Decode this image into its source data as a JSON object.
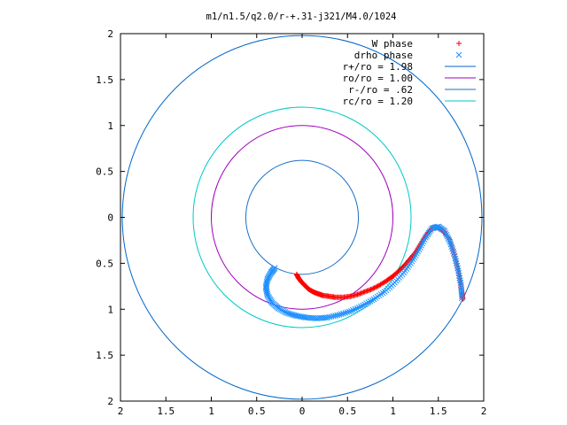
{
  "chart_data": {
    "type": "scatter",
    "title": "m1/n1.5/q2.0/r-+.31-j321/M4.0/1024",
    "xlabel": "",
    "ylabel": "",
    "xlim": [
      -2,
      2
    ],
    "ylim": [
      -2,
      2
    ],
    "x_ticks": [
      {
        "v": -2,
        "label": "2"
      },
      {
        "v": -1.5,
        "label": "1.5"
      },
      {
        "v": -1,
        "label": "1"
      },
      {
        "v": -0.5,
        "label": "0.5"
      },
      {
        "v": 0,
        "label": "0"
      },
      {
        "v": 0.5,
        "label": "0.5"
      },
      {
        "v": 1,
        "label": "1"
      },
      {
        "v": 1.5,
        "label": "1.5"
      },
      {
        "v": 2,
        "label": "2"
      }
    ],
    "y_ticks": [
      {
        "v": 2,
        "label": "2"
      },
      {
        "v": 1.5,
        "label": "1.5"
      },
      {
        "v": 1,
        "label": "1"
      },
      {
        "v": 0.5,
        "label": "0.5"
      },
      {
        "v": 0,
        "label": "0"
      },
      {
        "v": -0.5,
        "label": "0.5"
      },
      {
        "v": -1,
        "label": "1"
      },
      {
        "v": -1.5,
        "label": "1.5"
      },
      {
        "v": -2,
        "label": "2"
      }
    ],
    "grid": false,
    "legend_position": "top-right",
    "series": [
      {
        "name": "W phase",
        "kind": "points",
        "marker": "plus",
        "color": "#ff0000",
        "points": [
          [
            -0.06,
            -0.62
          ],
          [
            -0.04,
            -0.66
          ],
          [
            -0.01,
            -0.7
          ],
          [
            0.03,
            -0.74
          ],
          [
            0.07,
            -0.78
          ],
          [
            0.12,
            -0.81
          ],
          [
            0.17,
            -0.83
          ],
          [
            0.23,
            -0.85
          ],
          [
            0.3,
            -0.86
          ],
          [
            0.37,
            -0.87
          ],
          [
            0.45,
            -0.87
          ],
          [
            0.53,
            -0.86
          ],
          [
            0.61,
            -0.84
          ],
          [
            0.69,
            -0.81
          ],
          [
            0.77,
            -0.78
          ],
          [
            0.85,
            -0.74
          ],
          [
            0.93,
            -0.69
          ],
          [
            1.0,
            -0.64
          ],
          [
            1.07,
            -0.58
          ],
          [
            1.13,
            -0.52
          ],
          [
            1.19,
            -0.45
          ],
          [
            1.25,
            -0.38
          ],
          [
            1.3,
            -0.3
          ],
          [
            1.35,
            -0.22
          ],
          [
            1.4,
            -0.15
          ],
          [
            1.45,
            -0.11
          ],
          [
            1.5,
            -0.11
          ],
          [
            1.56,
            -0.15
          ],
          [
            1.62,
            -0.24
          ],
          [
            1.67,
            -0.38
          ],
          [
            1.71,
            -0.53
          ],
          [
            1.74,
            -0.69
          ],
          [
            1.76,
            -0.82
          ],
          [
            1.77,
            -0.89
          ]
        ]
      },
      {
        "name": "drho phase",
        "kind": "points",
        "marker": "cross",
        "color": "#1e90ff",
        "points": [
          [
            -0.3,
            -0.55
          ],
          [
            -0.34,
            -0.6
          ],
          [
            -0.38,
            -0.67
          ],
          [
            -0.4,
            -0.76
          ],
          [
            -0.38,
            -0.85
          ],
          [
            -0.33,
            -0.93
          ],
          [
            -0.26,
            -0.99
          ],
          [
            -0.17,
            -1.04
          ],
          [
            -0.07,
            -1.07
          ],
          [
            0.04,
            -1.09
          ],
          [
            0.16,
            -1.1
          ],
          [
            0.28,
            -1.09
          ],
          [
            0.41,
            -1.06
          ],
          [
            0.54,
            -1.02
          ],
          [
            0.67,
            -0.96
          ],
          [
            0.79,
            -0.89
          ],
          [
            0.91,
            -0.81
          ],
          [
            1.02,
            -0.71
          ],
          [
            1.12,
            -0.6
          ],
          [
            1.21,
            -0.48
          ],
          [
            1.29,
            -0.35
          ],
          [
            1.36,
            -0.22
          ],
          [
            1.43,
            -0.12
          ],
          [
            1.5,
            -0.1
          ],
          [
            1.57,
            -0.15
          ],
          [
            1.63,
            -0.27
          ],
          [
            1.68,
            -0.42
          ],
          [
            1.72,
            -0.58
          ],
          [
            1.75,
            -0.74
          ],
          [
            1.76,
            -0.88
          ]
        ]
      },
      {
        "name": "r+/ro = 1.98",
        "kind": "circle",
        "radius": 1.98,
        "color": "#0066cc"
      },
      {
        "name": "ro/ro = 1.00",
        "kind": "circle",
        "radius": 1.0,
        "color": "#a000c0"
      },
      {
        "name": "r-/ro = .62",
        "kind": "circle",
        "radius": 0.62,
        "color": "#1a70c8"
      },
      {
        "name": "rc/ro = 1.20",
        "kind": "circle",
        "radius": 1.2,
        "color": "#00c8c8"
      }
    ]
  }
}
